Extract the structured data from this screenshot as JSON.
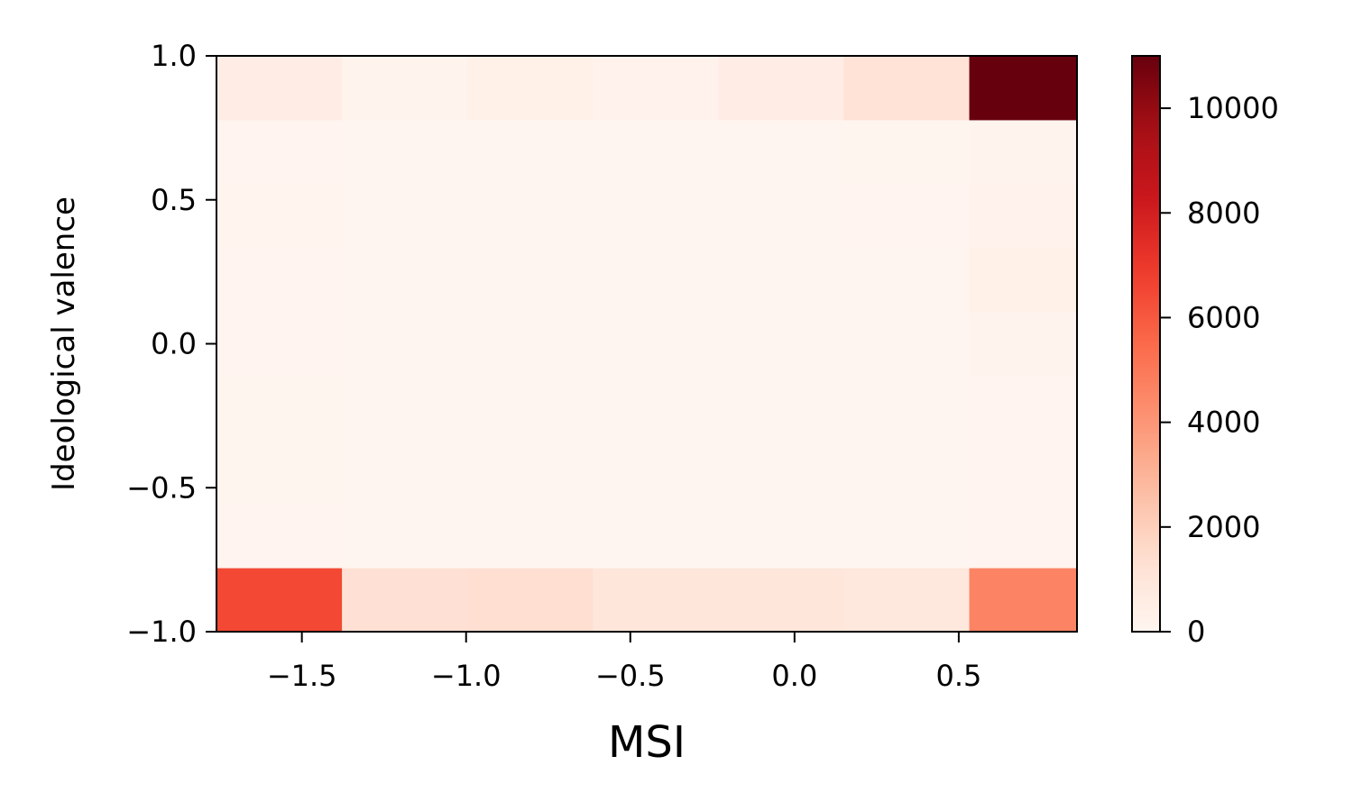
{
  "chart_data": {
    "type": "heatmap",
    "title": "",
    "xlabel": "MSI",
    "ylabel": "Ideological valence",
    "x_edges": [
      -1.76,
      -1.378,
      -0.996,
      -0.614,
      -0.232,
      0.15,
      0.532,
      0.86
    ],
    "y_edges": [
      -1.0,
      -0.778,
      -0.556,
      -0.333,
      -0.111,
      0.111,
      0.333,
      0.556,
      0.778,
      1.0
    ],
    "xlim": [
      -1.76,
      0.86
    ],
    "ylim": [
      -1.0,
      1.0
    ],
    "x_ticks": [
      -1.5,
      -1.0,
      -0.5,
      0.0,
      0.5
    ],
    "x_tick_labels": [
      "−1.5",
      "−1.0",
      "−0.5",
      "0.0",
      "0.5"
    ],
    "y_ticks": [
      -1.0,
      -0.5,
      0.0,
      0.5,
      1.0
    ],
    "y_tick_labels": [
      "−1.0",
      "−0.5",
      "0.0",
      "0.5",
      "1.0"
    ],
    "colorbar": {
      "colormap": "Reds",
      "range": [
        0,
        11000
      ],
      "ticks": [
        0,
        2000,
        4000,
        6000,
        8000,
        10000
      ],
      "tick_labels": [
        "0",
        "2000",
        "4000",
        "6000",
        "8000",
        "10000"
      ]
    },
    "counts": [
      [
        6500,
        1300,
        1400,
        1000,
        1000,
        900,
        4600
      ],
      [
        60,
        20,
        20,
        20,
        20,
        20,
        60
      ],
      [
        30,
        10,
        10,
        10,
        10,
        10,
        40
      ],
      [
        30,
        10,
        10,
        10,
        10,
        10,
        60
      ],
      [
        50,
        20,
        20,
        20,
        20,
        20,
        100
      ],
      [
        60,
        20,
        20,
        20,
        20,
        20,
        350
      ],
      [
        80,
        20,
        20,
        20,
        20,
        40,
        200
      ],
      [
        60,
        20,
        20,
        20,
        20,
        30,
        100
      ],
      [
        500,
        150,
        350,
        200,
        500,
        1200,
        11000
      ]
    ],
    "grid": false
  }
}
